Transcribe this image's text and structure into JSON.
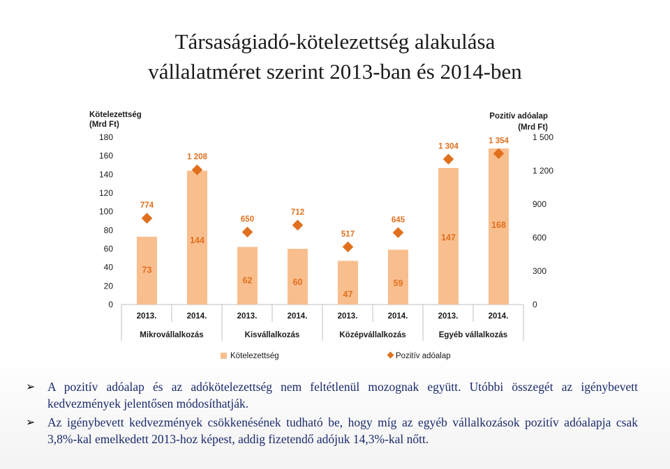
{
  "title": {
    "line1": "Társaságiadó-kötelezettség alakulása",
    "line2": "vállalatméret szerint 2013-ban és 2014-ben"
  },
  "chart_data": {
    "type": "bar",
    "left_axis_title": [
      "Kötelezettség",
      "(Mrd Ft)"
    ],
    "right_axis_title": [
      "Pozitív adóalap",
      "(Mrd Ft)"
    ],
    "ylim_left": [
      0,
      180
    ],
    "yticks_left": [
      "180",
      "160",
      "140",
      "120",
      "100",
      "80",
      "60",
      "40",
      "20",
      "0"
    ],
    "ylim_right": [
      0,
      1500
    ],
    "yticks_right": [
      "1 500",
      "1 200",
      "900",
      "600",
      "300",
      "0"
    ],
    "categories": [
      "2013.",
      "2014.",
      "2013.",
      "2014.",
      "2013.",
      "2014.",
      "2013.",
      "2014."
    ],
    "groups": [
      "Mikrovállalkozás",
      "Kisvállalkozás",
      "Középvállalkozás",
      "Egyéb vállalkozás"
    ],
    "series": [
      {
        "name": "Kötelezettség",
        "kind": "bar",
        "color": "#f9be8e",
        "values": [
          73,
          144,
          62,
          60,
          47,
          59,
          147,
          168
        ],
        "labels": [
          "73",
          "144",
          "62",
          "60",
          "47",
          "59",
          "147",
          "168"
        ]
      },
      {
        "name": "Pozitív adóalap",
        "kind": "marker",
        "color": "#e0701e",
        "values": [
          774,
          1208,
          650,
          712,
          517,
          645,
          1304,
          1354
        ],
        "labels": [
          "774",
          "1 208",
          "650",
          "712",
          "517",
          "645",
          "1 304",
          "1 354"
        ]
      }
    ],
    "legend_placement": "bottom",
    "grid": false
  },
  "bullets": [
    "A pozitív adóalap és az adókötelezettség nem feltétlenül mozognak együtt. Utóbbi összegét az igénybevett kedvezmények jelentősen módosíthatják.",
    "Az igénybevett kedvezmények csökkenésének tudható be, hogy míg az egyéb vállalkozások pozitív adóalapja csak 3,8%-kal emelkedett 2013-hoz képest, addig fizetendő adójuk 14,3%-kal nőtt."
  ]
}
